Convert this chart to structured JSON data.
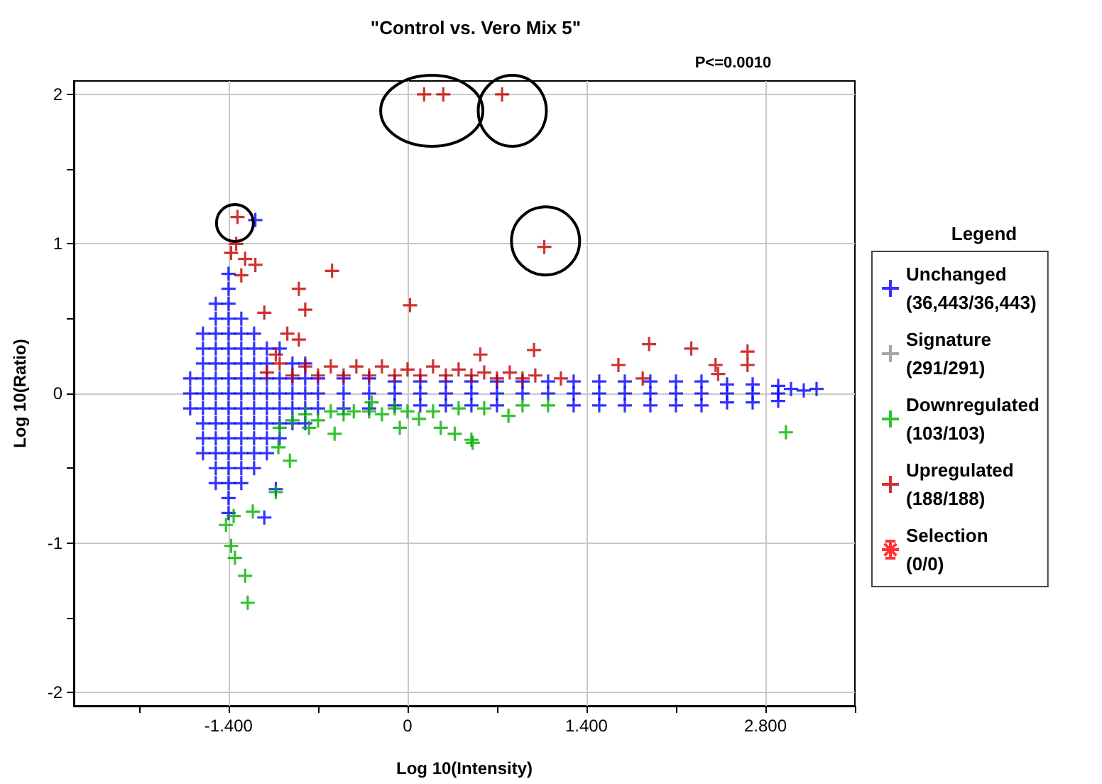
{
  "chart_data": {
    "type": "scatter",
    "title": "\"Control vs. Vero Mix 5\"",
    "xlabel": "Log 10(Intensity)",
    "ylabel": "Log 10(Ratio)",
    "legend_title": "Legend",
    "annotations": [
      "P<=0.0010"
    ],
    "xlim": [
      -2.61,
      3.5
    ],
    "ylim": [
      -2.09,
      2.09
    ],
    "xticks": [
      {
        "value": -2.1,
        "label": null
      },
      {
        "value": -1.4,
        "label": "-1.400"
      },
      {
        "value": -0.7,
        "label": null
      },
      0,
      {
        "value": 0.7,
        "label": null
      },
      {
        "value": 1.4,
        "label": "1.400"
      },
      {
        "value": 2.1,
        "label": null
      },
      {
        "value": 2.8,
        "label": "2.800"
      },
      {
        "value": 3.5,
        "label": null
      }
    ],
    "yticks": [
      -2,
      {
        "value": -1.5,
        "label": null
      },
      -1,
      {
        "value": -0.5,
        "label": null
      },
      0,
      {
        "value": 0.5,
        "label": null
      },
      1,
      {
        "value": 1.5,
        "label": null
      },
      2
    ],
    "grid": true,
    "legend": "right",
    "marker": "cross",
    "series": [
      {
        "name": "Unchanged\n(36,443/36,443)",
        "color": "#0000ff",
        "x": [
          -1.7,
          -1.7,
          -1.7,
          -1.6,
          -1.6,
          -1.6,
          -1.6,
          -1.6,
          -1.6,
          -1.6,
          -1.6,
          -1.6,
          -1.5,
          -1.5,
          -1.5,
          -1.5,
          -1.5,
          -1.5,
          -1.5,
          -1.5,
          -1.5,
          -1.5,
          -1.5,
          -1.5,
          -1.5,
          -1.4,
          -1.4,
          -1.4,
          -1.4,
          -1.4,
          -1.4,
          -1.4,
          -1.4,
          -1.4,
          -1.4,
          -1.4,
          -1.4,
          -1.4,
          -1.4,
          -1.4,
          -1.4,
          -1.4,
          -1.3,
          -1.3,
          -1.3,
          -1.3,
          -1.3,
          -1.3,
          -1.3,
          -1.3,
          -1.3,
          -1.3,
          -1.3,
          -1.3,
          -1.2,
          -1.2,
          -1.2,
          -1.2,
          -1.2,
          -1.2,
          -1.2,
          -1.2,
          -1.2,
          -1.2,
          -1.1,
          -1.1,
          -1.1,
          -1.1,
          -1.1,
          -1.1,
          -1.1,
          -1.1,
          -1.0,
          -1.0,
          -1.0,
          -1.0,
          -1.0,
          -1.0,
          -0.9,
          -0.9,
          -0.9,
          -0.9,
          -0.9,
          -0.8,
          -0.8,
          -0.8,
          -0.8,
          -0.8,
          -0.7,
          -0.7,
          -0.7,
          -0.5,
          -0.5,
          -0.5,
          -0.3,
          -0.3,
          -0.3,
          -0.1,
          -0.1,
          -0.1,
          0.1,
          0.1,
          0.1,
          0.3,
          0.3,
          0.3,
          0.5,
          0.5,
          0.5,
          0.7,
          0.7,
          0.7,
          0.9,
          0.9,
          1.1,
          1.1,
          1.3,
          1.3,
          1.3,
          1.5,
          1.5,
          1.5,
          1.7,
          1.7,
          1.7,
          1.9,
          1.9,
          1.9,
          2.1,
          2.1,
          2.1,
          2.3,
          2.3,
          2.3,
          2.5,
          2.5,
          2.5,
          2.7,
          2.7,
          2.7,
          2.9,
          2.9,
          2.9,
          -1.19,
          -1.12,
          -1.03,
          3.0,
          3.1,
          3.2
        ],
        "values": [
          -0.1,
          0,
          0.1,
          -0.4,
          -0.3,
          -0.2,
          -0.1,
          0,
          0.1,
          0.2,
          0.3,
          0.4,
          -0.6,
          -0.5,
          -0.4,
          -0.3,
          -0.2,
          -0.1,
          0,
          0.1,
          0.2,
          0.3,
          0.4,
          0.5,
          0.6,
          -0.8,
          -0.7,
          -0.6,
          -0.5,
          -0.4,
          -0.3,
          -0.2,
          -0.1,
          0,
          0.1,
          0.2,
          0.3,
          0.4,
          0.5,
          0.6,
          0.7,
          0.8,
          -0.6,
          -0.5,
          -0.4,
          -0.3,
          -0.2,
          -0.1,
          0,
          0.1,
          0.2,
          0.3,
          0.4,
          0.5,
          -0.5,
          -0.4,
          -0.3,
          -0.2,
          -0.1,
          0,
          0.1,
          0.2,
          0.3,
          0.4,
          -0.4,
          -0.3,
          -0.2,
          -0.1,
          0,
          0.1,
          0.2,
          0.3,
          -0.3,
          -0.2,
          -0.1,
          0,
          0.1,
          0.3,
          -0.2,
          -0.1,
          0,
          0.1,
          0.2,
          -0.2,
          -0.1,
          0,
          0.1,
          0.2,
          -0.1,
          0,
          0.1,
          -0.1,
          0,
          0.1,
          -0.1,
          0,
          0.1,
          -0.08,
          0,
          0.08,
          -0.08,
          0,
          0.08,
          -0.08,
          0,
          0.08,
          -0.08,
          0,
          0.08,
          -0.08,
          0,
          0.08,
          0,
          0.08,
          0,
          0.08,
          -0.08,
          0,
          0.08,
          -0.08,
          0,
          0.08,
          -0.08,
          0,
          0.08,
          -0.08,
          0,
          0.08,
          -0.08,
          0,
          0.08,
          -0.08,
          0,
          0.08,
          -0.06,
          0,
          0.06,
          -0.06,
          0,
          0.06,
          -0.05,
          0,
          0.05,
          1.16,
          -0.83,
          -0.64,
          0.03,
          0.02,
          0.03
        ]
      },
      {
        "name": "Signature\n(291/291)",
        "color": "#909090"
      },
      {
        "name": "Downregulated\n(103/103)",
        "color": "#00b000",
        "x": [
          -1.38,
          -1.35,
          -1.27,
          -1.25,
          -1.42,
          -1.36,
          -1.21,
          -1.03,
          -0.92,
          -1.01,
          -1.0,
          -0.77,
          -0.57,
          -0.42,
          -0.28,
          -0.06,
          0.26,
          0.37,
          0.5,
          0.51,
          0.09,
          0.79,
          2.96,
          -0.9,
          -0.8,
          -0.7,
          -0.6,
          -0.5,
          -0.3,
          -0.2,
          -0.1,
          0.0,
          0.2,
          0.4,
          0.6,
          0.9,
          1.1
        ],
        "values": [
          -1.02,
          -1.1,
          -1.22,
          -1.4,
          -0.88,
          -0.82,
          -0.79,
          -0.66,
          -0.45,
          -0.36,
          -0.23,
          -0.23,
          -0.27,
          -0.12,
          -0.06,
          -0.23,
          -0.23,
          -0.27,
          -0.31,
          -0.33,
          -0.17,
          -0.15,
          -0.26,
          -0.18,
          -0.14,
          -0.18,
          -0.12,
          -0.14,
          -0.12,
          -0.14,
          -0.1,
          -0.12,
          -0.12,
          -0.1,
          -0.1,
          -0.08,
          -0.08
        ]
      },
      {
        "name": "Upregulated\n(188/188)",
        "color": "#c00000",
        "x": [
          0.13,
          0.28,
          0.74,
          1.07,
          -1.33,
          -1.34,
          -1.38,
          -1.27,
          -1.19,
          -1.3,
          -0.59,
          -0.85,
          -0.8,
          -1.12,
          0.02,
          -0.94,
          -0.85,
          -1.03,
          0.57,
          0.99,
          1.89,
          2.22,
          2.66,
          2.66,
          2.41,
          2.43,
          1.65,
          1.84,
          -1.1,
          -1.0,
          -0.9,
          -0.8,
          -0.7,
          -0.6,
          -0.5,
          -0.4,
          -0.3,
          -0.2,
          -0.1,
          0,
          0.1,
          0.2,
          0.3,
          0.4,
          0.5,
          0.6,
          0.7,
          0.8,
          0.9,
          1.0,
          1.2
        ],
        "values": [
          2.0,
          2.0,
          2.0,
          0.98,
          1.18,
          1.0,
          0.94,
          0.9,
          0.86,
          0.79,
          0.82,
          0.7,
          0.56,
          0.54,
          0.59,
          0.4,
          0.36,
          0.26,
          0.26,
          0.29,
          0.33,
          0.3,
          0.28,
          0.19,
          0.19,
          0.13,
          0.19,
          0.1,
          0.14,
          0.2,
          0.12,
          0.18,
          0.12,
          0.18,
          0.12,
          0.18,
          0.12,
          0.18,
          0.12,
          0.16,
          0.12,
          0.18,
          0.12,
          0.16,
          0.12,
          0.14,
          0.1,
          0.14,
          0.1,
          0.12,
          0.1
        ]
      },
      {
        "name": "Selection\n(0/0)",
        "color": "#ff0000",
        "marker": "star"
      }
    ]
  }
}
